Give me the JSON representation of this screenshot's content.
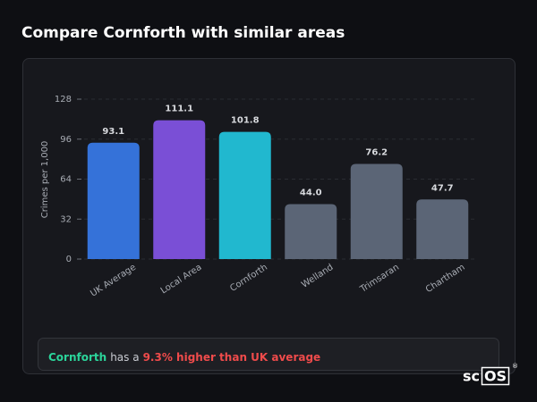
{
  "title": "Compare Cornforth with similar areas",
  "chart_data": {
    "type": "bar",
    "y_label": "Crimes per 1,000",
    "categories": [
      "UK Average",
      "Local Area",
      "Cornforth",
      "Welland",
      "Trimsaran",
      "Chartham"
    ],
    "values": [
      93.1,
      111.1,
      101.8,
      44.0,
      76.2,
      47.7
    ],
    "value_labels": [
      "93.1",
      "111.1",
      "101.8",
      "44.0",
      "76.2",
      "47.7"
    ],
    "colors": [
      "#3572d9",
      "#7a4fd6",
      "#21b8cf",
      "#5b6576",
      "#5b6576",
      "#5b6576"
    ],
    "ylim": [
      0,
      128
    ],
    "yticks": [
      0,
      32,
      64,
      96,
      128
    ],
    "grid": true
  },
  "summary": {
    "area": "Cornforth",
    "text": "has a",
    "comparison": "9.3% higher than UK average"
  },
  "logo": {
    "prefix": "sc",
    "boxed": "OS",
    "mark": "®"
  }
}
